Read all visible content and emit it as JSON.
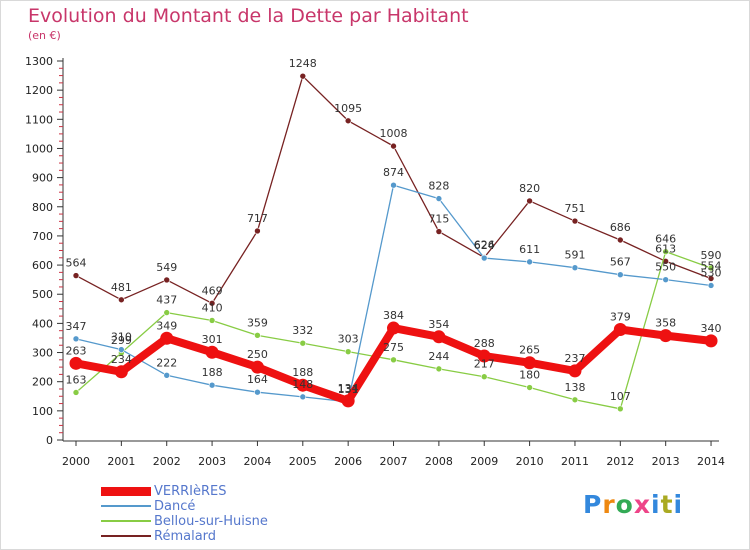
{
  "chart_data": {
    "type": "line",
    "title": "Evolution du Montant de la Dette par Habitant",
    "subtitle": "(en €)",
    "xlabel": "",
    "ylabel": "",
    "x": [
      "2000",
      "2001",
      "2002",
      "2003",
      "2004",
      "2005",
      "2006",
      "2007",
      "2008",
      "2009",
      "2010",
      "2011",
      "2012",
      "2013",
      "2014"
    ],
    "ylim": [
      0,
      1300
    ],
    "yticks": [
      0,
      100,
      200,
      300,
      400,
      500,
      600,
      700,
      800,
      900,
      1000,
      1100,
      1200,
      1300
    ],
    "ytick_labels": [
      "0",
      "100",
      "200",
      "300",
      "400",
      "500",
      "600",
      "700",
      "800",
      "900",
      "1000",
      "1100",
      "1200",
      "1300"
    ],
    "grid": false,
    "legend_position": "bottom-left",
    "series": [
      {
        "name": "VERRIèRES",
        "color": "#ee1111",
        "values": [
          263,
          234,
          349,
          301,
          250,
          188,
          134,
          384,
          354,
          288,
          265,
          237,
          379,
          358,
          340
        ]
      },
      {
        "name": "Dancé",
        "color": "#5599cc",
        "values": [
          347,
          310,
          222,
          188,
          164,
          148,
          131,
          874,
          828,
          624,
          611,
          591,
          567,
          550,
          530
        ]
      },
      {
        "name": "Bellou-sur-Huisne",
        "color": "#88cc44",
        "values": [
          163,
          299,
          437,
          410,
          359,
          332,
          303,
          275,
          244,
          217,
          180,
          138,
          107,
          646,
          590
        ]
      },
      {
        "name": "Rémalard",
        "color": "#772222",
        "values": [
          564,
          481,
          549,
          469,
          717,
          1248,
          1095,
          1008,
          715,
          626,
          820,
          751,
          686,
          613,
          554
        ]
      }
    ]
  },
  "logo": {
    "letters": [
      "P",
      "r",
      "o",
      "x",
      "i",
      "t",
      "i"
    ],
    "colors": [
      "#3388dd",
      "#ee8811",
      "#33aa55",
      "#ee4488",
      "#3388dd",
      "#aaaa22",
      "#3388dd"
    ]
  }
}
